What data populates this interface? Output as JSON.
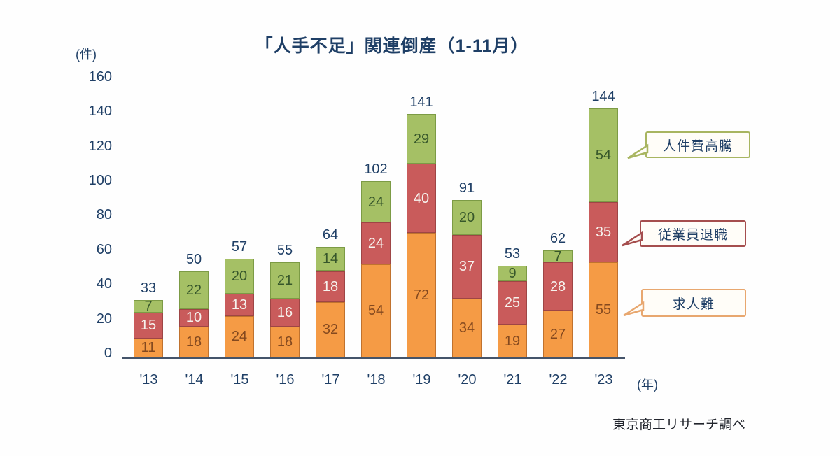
{
  "title": "「人手不足」関連倒産（1-11月）",
  "y_axis_unit": "(件)",
  "x_axis_unit": "(年)",
  "source_note": "東京商工リサーチ調べ",
  "chart_data": {
    "type": "bar",
    "stacked": true,
    "title": "「人手不足」関連倒産（1-11月）",
    "ylabel": "(件)",
    "xlabel": "(年)",
    "ylim": [
      0,
      160
    ],
    "yticks": [
      0,
      20,
      40,
      60,
      80,
      100,
      120,
      140,
      160
    ],
    "grid": false,
    "legend_position": "right",
    "categories": [
      "'13",
      "'14",
      "'15",
      "'16",
      "'17",
      "'18",
      "'19",
      "'20",
      "'21",
      "'22",
      "'23"
    ],
    "series": [
      {
        "name": "求人難",
        "color": "#f59b45",
        "border_color": "#c0722e",
        "label_color": "#84491f",
        "values": [
          11,
          18,
          24,
          18,
          32,
          54,
          72,
          34,
          19,
          27,
          55
        ]
      },
      {
        "name": "従業員退職",
        "color": "#c95b5b",
        "border_color": "#9e4545",
        "label_color": "#f6f3ee",
        "values": [
          15,
          10,
          13,
          16,
          18,
          24,
          40,
          37,
          25,
          28,
          35
        ]
      },
      {
        "name": "人件費高騰",
        "color": "#a5c065",
        "border_color": "#7c9b45",
        "label_color": "#37572b",
        "values": [
          7,
          22,
          20,
          21,
          14,
          24,
          29,
          20,
          9,
          7,
          54
        ]
      }
    ],
    "totals": [
      33,
      50,
      57,
      55,
      64,
      102,
      141,
      91,
      53,
      62,
      144
    ]
  },
  "legend": {
    "items": [
      {
        "label": "人件費高騰",
        "border_color": "#a8b560"
      },
      {
        "label": "従業員退職",
        "border_color": "#a54e4e"
      },
      {
        "label": "求人難",
        "border_color": "#e8a76f"
      }
    ]
  },
  "colors": {
    "text_navy": "#1f3f66",
    "axis_line": "#44546a",
    "background": "#fefefe"
  }
}
